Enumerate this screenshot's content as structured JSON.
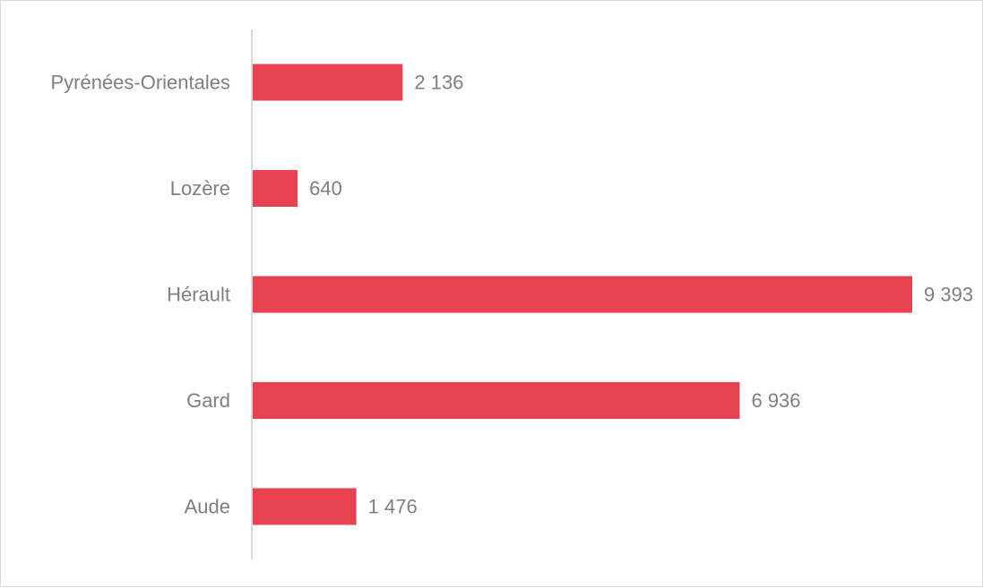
{
  "chart_data": {
    "type": "bar",
    "orientation": "horizontal",
    "categories": [
      "Pyrénées-Orientales",
      "Lozère",
      "Hérault",
      "Gard",
      "Aude"
    ],
    "values": [
      2136,
      640,
      9393,
      6936,
      1476
    ],
    "value_labels": [
      "2 136",
      "640",
      "9 393",
      "6 936",
      "1 476"
    ],
    "xlim": [
      0,
      9393
    ],
    "grid": false,
    "legend": "none",
    "bar_color": "#e8414f"
  }
}
